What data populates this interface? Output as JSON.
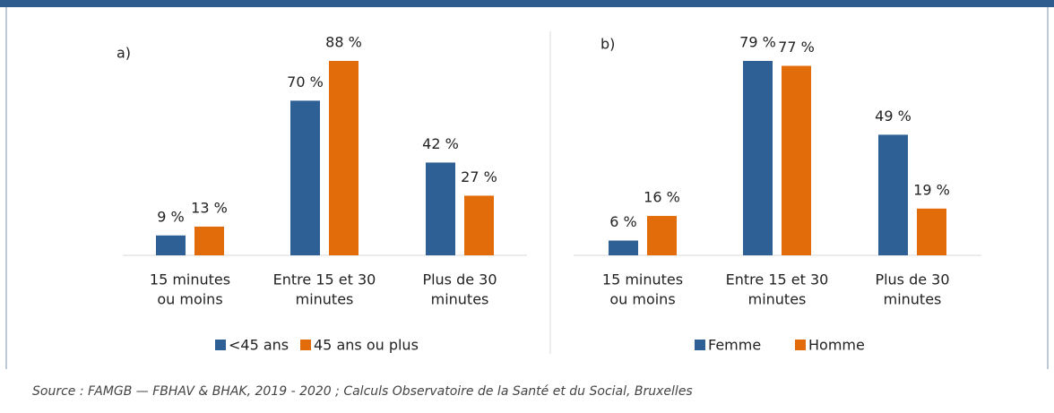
{
  "chart_data": [
    {
      "type": "bar",
      "title": "a)",
      "categories": [
        [
          "15 minutes",
          "ou moins"
        ],
        [
          "Entre 15 et 30",
          "minutes"
        ],
        [
          "Plus de 30",
          "minutes"
        ]
      ],
      "series": [
        {
          "name": "<45 ans",
          "color": "#2e5f95",
          "values": [
            9,
            70,
            42
          ],
          "value_labels": [
            "9 %",
            "70 %",
            "42 %"
          ]
        },
        {
          "name": "45 ans ou plus",
          "color": "#e36c0a",
          "values": [
            13,
            88,
            27
          ],
          "value_labels": [
            "13 %",
            "88 %",
            "27 %"
          ]
        }
      ]
    },
    {
      "type": "bar",
      "title": "b)",
      "categories": [
        [
          "15 minutes",
          "ou moins"
        ],
        [
          "Entre 15 et 30",
          "minutes"
        ],
        [
          "Plus de 30",
          "minutes"
        ]
      ],
      "series": [
        {
          "name": "Femme",
          "color": "#2e5f95",
          "values": [
            6,
            79,
            49
          ],
          "value_labels": [
            "6 %",
            "79 %",
            "49 %"
          ]
        },
        {
          "name": "Homme",
          "color": "#e36c0a",
          "values": [
            16,
            77,
            19
          ],
          "value_labels": [
            "16 %",
            "77 %",
            "19 %"
          ]
        }
      ]
    }
  ],
  "source": "Source : FAMGB — FBHAV & BHAK, 2019 - 2020 ; Calculs Observatoire de la Santé et du Social, Bruxelles"
}
